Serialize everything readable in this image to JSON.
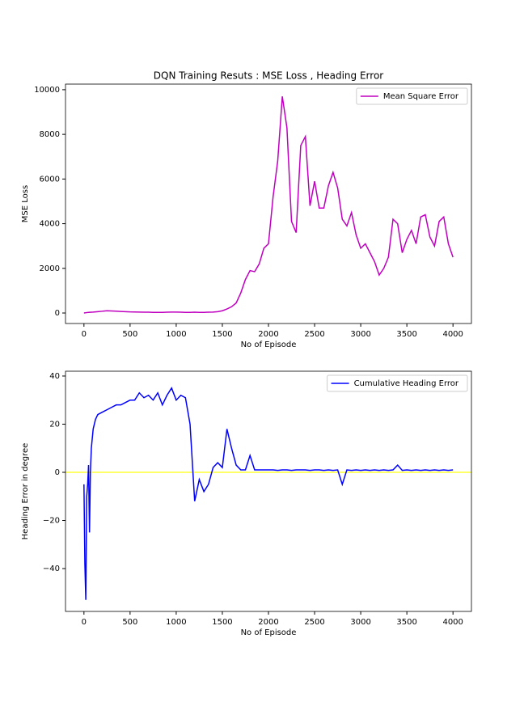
{
  "chart_data": [
    {
      "type": "line",
      "title": "DQN Training Resuts : MSE Loss , Heading Error",
      "x_label": "No of Episode",
      "y_label": "MSE Loss",
      "x": [
        0,
        50,
        100,
        150,
        200,
        250,
        300,
        350,
        400,
        450,
        500,
        550,
        600,
        650,
        700,
        750,
        800,
        850,
        900,
        950,
        1000,
        1050,
        1100,
        1150,
        1200,
        1250,
        1300,
        1350,
        1400,
        1450,
        1500,
        1550,
        1600,
        1650,
        1700,
        1750,
        1800,
        1850,
        1900,
        1950,
        2000,
        2050,
        2100,
        2150,
        2200,
        2250,
        2300,
        2350,
        2400,
        2450,
        2500,
        2550,
        2600,
        2650,
        2700,
        2750,
        2800,
        2850,
        2900,
        2950,
        3000,
        3050,
        3100,
        3150,
        3200,
        3250,
        3300,
        3350,
        3400,
        3450,
        3500,
        3550,
        3600,
        3650,
        3700,
        3750,
        3800,
        3850,
        3900,
        3950,
        4000
      ],
      "series": [
        {
          "name": "Mean Square Error",
          "color": "#bf00bf",
          "values": [
            0,
            30,
            40,
            60,
            80,
            100,
            90,
            80,
            70,
            60,
            50,
            45,
            40,
            35,
            35,
            30,
            30,
            30,
            35,
            40,
            40,
            35,
            30,
            30,
            35,
            30,
            30,
            35,
            40,
            60,
            100,
            180,
            280,
            450,
            900,
            1500,
            1900,
            1850,
            2200,
            2900,
            3100,
            5200,
            6800,
            9700,
            8300,
            4100,
            3600,
            7500,
            7900,
            4800,
            5900,
            4700,
            4700,
            5700,
            6300,
            5600,
            4200,
            3900,
            4500,
            3500,
            2900,
            3100,
            2700,
            2300,
            1700,
            2000,
            2500,
            4200,
            4000,
            2700,
            3300,
            3700,
            3100,
            4300,
            4400,
            3400,
            3000,
            4100,
            4300,
            3100,
            2500
          ]
        }
      ],
      "xlim": [
        -200,
        4200
      ],
      "ylim": [
        -470,
        10250
      ],
      "xticks": [
        0,
        500,
        1000,
        1500,
        2000,
        2500,
        3000,
        3500,
        4000
      ],
      "yticks": [
        0,
        2000,
        4000,
        6000,
        8000,
        10000
      ],
      "legend": "upper right"
    },
    {
      "type": "line",
      "x_label": "No of Episode",
      "y_label": "Heading Error in degree",
      "x": [
        0,
        10,
        20,
        30,
        40,
        50,
        60,
        70,
        80,
        100,
        125,
        150,
        200,
        250,
        300,
        350,
        400,
        450,
        500,
        550,
        600,
        650,
        700,
        750,
        800,
        850,
        900,
        950,
        1000,
        1050,
        1100,
        1150,
        1200,
        1250,
        1300,
        1350,
        1400,
        1450,
        1500,
        1550,
        1600,
        1650,
        1700,
        1750,
        1800,
        1850,
        1900,
        1950,
        2000,
        2050,
        2100,
        2150,
        2200,
        2250,
        2300,
        2350,
        2400,
        2450,
        2500,
        2550,
        2600,
        2650,
        2700,
        2750,
        2800,
        2850,
        2900,
        2950,
        3000,
        3050,
        3100,
        3150,
        3200,
        3250,
        3300,
        3350,
        3400,
        3450,
        3500,
        3550,
        3600,
        3650,
        3700,
        3750,
        3800,
        3850,
        3900,
        3950,
        4000
      ],
      "series": [
        {
          "name": "Cumulative Heading Error",
          "color": "#0000ff",
          "values": [
            -5,
            -38,
            -53,
            -10,
            -5,
            3,
            -25,
            0,
            10,
            18,
            22,
            24,
            25,
            26,
            27,
            28,
            28,
            29,
            30,
            30,
            33,
            31,
            32,
            30,
            33,
            28,
            32,
            35,
            30,
            32,
            31,
            20,
            -12,
            -3,
            -8,
            -5,
            2,
            4,
            2,
            18,
            10,
            3,
            1,
            1,
            7,
            1,
            1,
            1,
            1,
            1,
            0.8,
            1,
            1,
            0.8,
            1,
            1,
            1,
            0.8,
            1,
            1,
            0.8,
            1,
            0.8,
            1,
            -5,
            1,
            0.8,
            1,
            0.8,
            1,
            0.8,
            1,
            0.8,
            1,
            0.8,
            1,
            3,
            0.8,
            1,
            0.8,
            1,
            0.8,
            1,
            0.8,
            1,
            0.8,
            1,
            0.8,
            1
          ]
        }
      ],
      "reference_line": {
        "value": 0,
        "color": "#ffff33"
      },
      "xlim": [
        -200,
        4200
      ],
      "ylim": [
        -57.8,
        42
      ],
      "xticks": [
        0,
        500,
        1000,
        1500,
        2000,
        2500,
        3000,
        3500,
        4000
      ],
      "yticks": [
        {
          "value": -40,
          "label": "−40"
        },
        {
          "value": -20,
          "label": "−20"
        },
        0,
        20,
        40
      ],
      "legend": "upper right"
    }
  ]
}
